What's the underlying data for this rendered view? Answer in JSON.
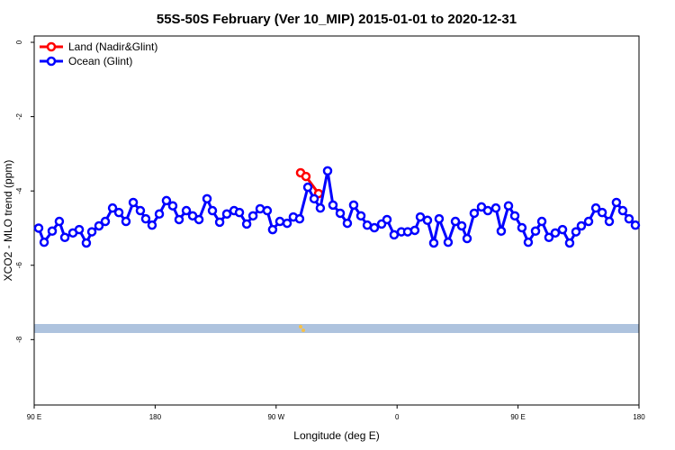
{
  "chart_data": {
    "type": "line",
    "title": "55S-50S February (Ver 10_MIP)   2015-01-01 to 2020-12-31",
    "xlabel": "Longitude (deg E)",
    "ylabel": "XCO2 - MLO trend (ppm)",
    "xlim": [
      90,
      540
    ],
    "ylim": [
      -9.76,
      0.17
    ],
    "xticks": [
      {
        "value": 90,
        "label": "90 E"
      },
      180,
      {
        "value": 270,
        "label": "90 W"
      },
      {
        "value": 360,
        "label": "0"
      },
      {
        "value": 450,
        "label": "90 E"
      },
      {
        "value": 540,
        "label": "180"
      }
    ],
    "yticks": [
      0,
      -2,
      -4,
      -6,
      -8
    ],
    "legend": "top-left",
    "series": [
      {
        "name": "Land (Nadir&Glint)",
        "color": "#ff0000",
        "x": [
          288.2,
          292.2,
          301.6
        ],
        "values": [
          -3.51,
          -3.61,
          -4.07
        ]
      },
      {
        "name": "Ocean (Glint)",
        "color": "#0000ff",
        "x": [
          93.3,
          97.4,
          103.4,
          108.7,
          112.8,
          118.8,
          123.5,
          128.8,
          132.9,
          138.2,
          142.9,
          148.3,
          153.0,
          158.3,
          163.7,
          169.0,
          173.0,
          177.7,
          183.1,
          188.4,
          193.1,
          197.8,
          203.2,
          207.9,
          212.6,
          218.6,
          222.6,
          228.0,
          233.3,
          238.7,
          242.7,
          248.1,
          252.8,
          258.1,
          263.4,
          267.4,
          272.8,
          278.2,
          282.8,
          287.5,
          293.6,
          298.3,
          302.9,
          308.3,
          312.3,
          317.7,
          323.0,
          327.7,
          333.1,
          337.8,
          343.1,
          348.5,
          352.5,
          357.8,
          363.2,
          367.9,
          373.2,
          377.3,
          382.6,
          387.3,
          391.3,
          398.0,
          403.4,
          408.1,
          412.1,
          417.4,
          422.8,
          427.5,
          433.5,
          437.5,
          442.9,
          447.6,
          452.9,
          457.6,
          463.0,
          467.7,
          473.0,
          477.7,
          483.1,
          488.4,
          493.1,
          497.1,
          502.5,
          507.9,
          512.6,
          517.9,
          523.2,
          527.9,
          532.6,
          537.3
        ],
        "values": [
          -5.0,
          -5.38,
          -5.08,
          -4.82,
          -5.25,
          -5.13,
          -5.04,
          -5.4,
          -5.1,
          -4.94,
          -4.82,
          -4.46,
          -4.58,
          -4.82,
          -4.31,
          -4.53,
          -4.75,
          -4.92,
          -4.62,
          -4.26,
          -4.4,
          -4.77,
          -4.53,
          -4.67,
          -4.77,
          -4.21,
          -4.53,
          -4.84,
          -4.62,
          -4.53,
          -4.58,
          -4.89,
          -4.67,
          -4.48,
          -4.53,
          -5.04,
          -4.82,
          -4.87,
          -4.7,
          -4.75,
          -3.9,
          -4.21,
          -4.46,
          -3.46,
          -4.38,
          -4.6,
          -4.87,
          -4.38,
          -4.67,
          -4.92,
          -4.99,
          -4.89,
          -4.77,
          -5.18,
          -5.1,
          -5.1,
          -5.06,
          -4.7,
          -4.79,
          -5.4,
          -4.75,
          -5.38,
          -4.82,
          -4.94,
          -5.28,
          -4.6,
          -4.43,
          -4.53,
          -4.46,
          -5.08,
          -4.4,
          -4.67,
          -4.99,
          -5.38,
          -5.08,
          -4.82,
          -5.25,
          -5.13,
          -5.04,
          -5.4,
          -5.1,
          -4.94,
          -4.82,
          -4.46,
          -4.58,
          -4.82,
          -4.31,
          -4.53,
          -4.75,
          -4.92
        ]
      }
    ]
  }
}
